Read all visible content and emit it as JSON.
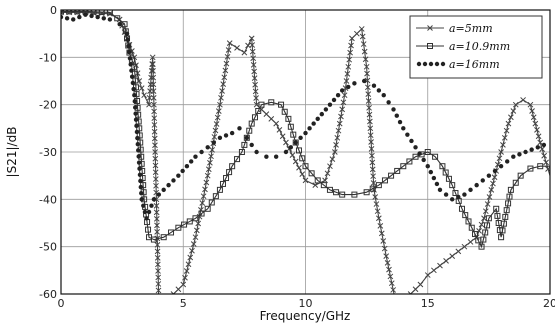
{
  "chart_data": {
    "type": "line",
    "xlabel": "Frequency/GHz",
    "ylabel": "|S21|/dB",
    "xlim": [
      0,
      20
    ],
    "ylim": [
      -60,
      0
    ],
    "xticks": [
      0,
      5,
      10,
      15,
      20
    ],
    "yticks": [
      0,
      -10,
      -20,
      -30,
      -40,
      -50,
      -60
    ],
    "grid": true,
    "legend_position": "top-right",
    "series": [
      {
        "name": "a=5mm",
        "color": "#444444",
        "marker": "x",
        "x": [
          0.0,
          1.0,
          2.0,
          2.4,
          2.7,
          3.0,
          3.2,
          3.4,
          3.6,
          3.75,
          3.9,
          4.0,
          4.3,
          4.6,
          5.0,
          5.5,
          6.0,
          6.5,
          6.9,
          7.2,
          7.5,
          7.8,
          8.0,
          8.4,
          8.8,
          9.2,
          9.6,
          10.0,
          10.4,
          10.8,
          11.2,
          11.6,
          11.9,
          12.1,
          12.3,
          12.5,
          12.8,
          13.0,
          13.3,
          13.7,
          14.0,
          14.3,
          14.7,
          15.0,
          15.5,
          16.0,
          16.5,
          17.0,
          17.3,
          17.6,
          18.0,
          18.3,
          18.6,
          18.9,
          19.2,
          19.6,
          20.0
        ],
        "values": [
          -0.5,
          -0.5,
          -0.8,
          -2.0,
          -6.0,
          -10.0,
          -15.0,
          -18.0,
          -20.0,
          -10.0,
          -40.0,
          -62.0,
          -62.0,
          -60.0,
          -58.0,
          -48.0,
          -35.0,
          -20.0,
          -7.0,
          -8.0,
          -9.0,
          -6.0,
          -20.0,
          -22.0,
          -24.0,
          -28.0,
          -32.0,
          -36.0,
          -37.0,
          -36.0,
          -30.0,
          -18.0,
          -6.0,
          -5.0,
          -4.0,
          -12.0,
          -38.0,
          -44.0,
          -52.0,
          -62.0,
          -62.0,
          -60.0,
          -58.0,
          -56.0,
          -54.0,
          -52.0,
          -50.0,
          -48.0,
          -44.0,
          -38.0,
          -30.0,
          -24.0,
          -20.0,
          -19.0,
          -20.0,
          -28.0,
          -35.0
        ]
      },
      {
        "name": "a=10.9mm",
        "color": "#333333",
        "marker": "square",
        "x": [
          0.0,
          1.0,
          2.0,
          2.6,
          2.8,
          3.0,
          3.2,
          3.4,
          3.6,
          3.8,
          4.2,
          4.8,
          5.5,
          6.0,
          6.5,
          7.0,
          7.4,
          7.8,
          8.2,
          8.6,
          9.0,
          9.3,
          9.6,
          10.0,
          10.5,
          11.0,
          11.5,
          12.0,
          12.5,
          13.0,
          13.5,
          14.0,
          14.5,
          15.0,
          15.3,
          15.6,
          16.0,
          16.4,
          16.8,
          17.2,
          17.5,
          17.8,
          18.0,
          18.4,
          18.8,
          19.2,
          19.6,
          20.0
        ],
        "values": [
          -0.3,
          -0.3,
          -0.5,
          -3.0,
          -9.0,
          -12.0,
          -25.0,
          -40.0,
          -48.0,
          -48.5,
          -48.0,
          -46.0,
          -44.0,
          -42.0,
          -38.0,
          -33.0,
          -30.0,
          -24.0,
          -20.0,
          -19.5,
          -20.0,
          -23.0,
          -28.0,
          -33.0,
          -36.0,
          -38.0,
          -39.0,
          -39.0,
          -38.5,
          -37.0,
          -35.0,
          -33.0,
          -31.0,
          -30.0,
          -31.0,
          -33.0,
          -37.0,
          -42.0,
          -46.0,
          -50.0,
          -44.0,
          -42.0,
          -48.0,
          -38.0,
          -35.0,
          -33.5,
          -33.0,
          -33.0
        ]
      },
      {
        "name": "a=16mm",
        "color": "#222222",
        "marker": "dot",
        "x": [
          0.0,
          0.5,
          1.0,
          1.5,
          2.0,
          2.4,
          2.7,
          3.0,
          3.3,
          3.5,
          3.8,
          4.2,
          4.8,
          5.5,
          6.0,
          6.5,
          7.0,
          7.3,
          7.6,
          8.0,
          8.4,
          8.8,
          9.2,
          9.6,
          10.0,
          10.5,
          11.0,
          11.5,
          12.0,
          12.4,
          12.8,
          13.2,
          13.6,
          14.0,
          14.5,
          15.0,
          15.5,
          16.0,
          16.5,
          17.0,
          17.5,
          18.0,
          18.5,
          19.0,
          19.5,
          20.0
        ],
        "values": [
          -1.5,
          -2.0,
          -1.0,
          -1.5,
          -2.0,
          -3.0,
          -5.0,
          -18.0,
          -40.0,
          -44.0,
          -40.0,
          -38.0,
          -35.0,
          -31.0,
          -29.0,
          -27.0,
          -26.0,
          -25.0,
          -27.0,
          -30.0,
          -31.0,
          -31.0,
          -30.0,
          -28.0,
          -26.0,
          -23.0,
          -20.0,
          -17.0,
          -15.5,
          -15.0,
          -16.0,
          -18.0,
          -21.0,
          -25.0,
          -29.0,
          -33.0,
          -38.0,
          -40.0,
          -39.0,
          -37.0,
          -35.0,
          -33.0,
          -31.0,
          -30.0,
          -29.0,
          -28.0
        ]
      }
    ]
  }
}
